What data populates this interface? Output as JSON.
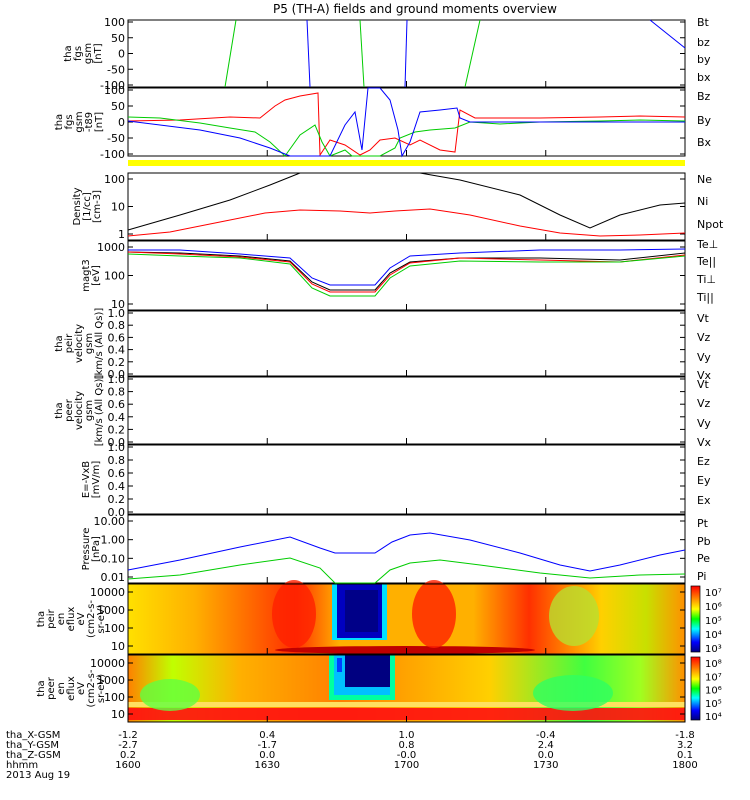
{
  "title": "P5 (TH-A) fields and ground moments overview",
  "chart_data": [
    {
      "id": "fgs",
      "type": "line",
      "ylabel": [
        "tha",
        "fgs",
        "gsm",
        "[nT]"
      ],
      "ylim": [
        -100,
        100
      ],
      "yticks": [
        "100",
        "50",
        "0",
        "-50",
        "-100"
      ],
      "legend": [
        {
          "label": "Bt",
          "color": "#000000"
        },
        {
          "label": "bz",
          "color": "#ff0000"
        },
        {
          "label": "by",
          "color": "#00cc00"
        },
        {
          "label": "bx",
          "color": "#0000ff"
        }
      ]
    },
    {
      "id": "fgs_dsl",
      "type": "line",
      "ylabel": [
        "tha",
        "fgs",
        "gsm",
        "-t89",
        "[nT]"
      ],
      "ylim": [
        -130,
        130
      ],
      "yticks": [
        "100",
        "50",
        "0",
        "-50",
        "-100"
      ],
      "legend": [
        {
          "label": "Bz",
          "color": "#ff0000"
        },
        {
          "label": "By",
          "color": "#00cc00"
        },
        {
          "label": "Bx",
          "color": "#0000ff"
        }
      ]
    },
    {
      "id": "density",
      "type": "line",
      "log": true,
      "ylabel": [
        "Density",
        "[1/cc]",
        "[cm-3]"
      ],
      "yticks": [
        "100",
        "10",
        "1"
      ],
      "legend": [
        {
          "label": "Ne",
          "color": "#ff0000"
        },
        {
          "label": "Ni",
          "color": "#000000"
        },
        {
          "label": "Npot",
          "color": "#0000ff"
        }
      ]
    },
    {
      "id": "temperature",
      "type": "line",
      "log": true,
      "ylabel": [
        "magt3",
        "[eV]"
      ],
      "yticks": [
        "1000",
        "100",
        "10"
      ],
      "legend": [
        {
          "label": "Te⊥",
          "color": "#ff0000"
        },
        {
          "label": "Te||",
          "color": "#000000"
        },
        {
          "label": "Ti⊥",
          "color": "#0000ff"
        },
        {
          "label": "Ti||",
          "color": "#00cc00"
        }
      ]
    },
    {
      "id": "peir_velocity",
      "type": "line",
      "ylabel": [
        "tha",
        "peir",
        "velocity",
        "gsm",
        "[km/s (All Qs)]"
      ],
      "ylim": [
        0,
        1
      ],
      "yticks": [
        "1.0",
        "0.8",
        "0.6",
        "0.4",
        "0.2",
        "0.0"
      ],
      "legend": [
        {
          "label": "Vt",
          "color": "#000000"
        },
        {
          "label": "Vz",
          "color": "#ff0000"
        },
        {
          "label": "Vy",
          "color": "#00cc00"
        },
        {
          "label": "Vx",
          "color": "#0000ff"
        }
      ]
    },
    {
      "id": "peer_velocity",
      "type": "line",
      "ylabel": [
        "tha",
        "peer",
        "velocity",
        "gsm",
        "[km/s (All Qs)]"
      ],
      "ylim": [
        0,
        1
      ],
      "yticks": [
        "1.0",
        "0.8",
        "0.6",
        "0.4",
        "0.2",
        "0.0"
      ],
      "legend": [
        {
          "label": "Vt",
          "color": "#000000"
        },
        {
          "label": "Vz",
          "color": "#ff0000"
        },
        {
          "label": "Vy",
          "color": "#00cc00"
        },
        {
          "label": "Vx",
          "color": "#0000ff"
        }
      ]
    },
    {
      "id": "efield",
      "type": "line",
      "ylabel": [
        "E=-VxB",
        "[mV/m]"
      ],
      "ylim": [
        0,
        1
      ],
      "yticks": [
        "1.0",
        "0.8",
        "0.6",
        "0.4",
        "0.2",
        "0.0"
      ],
      "legend": [
        {
          "label": "Ez",
          "color": "#ff0000"
        },
        {
          "label": "Ey",
          "color": "#00cc00"
        },
        {
          "label": "Ex",
          "color": "#0000ff"
        }
      ]
    },
    {
      "id": "pressure",
      "type": "line",
      "log": true,
      "ylabel": [
        "Pressure",
        "[nPa]"
      ],
      "yticks": [
        "10.00",
        "1.00",
        "0.10",
        "0.01"
      ],
      "legend": [
        {
          "label": "Pt",
          "color": "#000000"
        },
        {
          "label": "Pb",
          "color": "#ff0000"
        },
        {
          "label": "Pe",
          "color": "#00cc00"
        },
        {
          "label": "Pi",
          "color": "#0000ff"
        }
      ]
    },
    {
      "id": "peir_spec",
      "type": "heatmap",
      "ylabel": [
        "tha",
        "peir",
        "en",
        "eflux",
        "eV",
        "(cm2-s-",
        "sr-eV)"
      ],
      "yticks": [
        "10000",
        "1000",
        "100",
        "10"
      ],
      "colorbar_ticks": [
        "10⁷",
        "10⁶",
        "10⁵",
        "10⁴",
        "10³"
      ]
    },
    {
      "id": "peer_spec",
      "type": "heatmap",
      "ylabel": [
        "tha",
        "peer",
        "en",
        "eflux",
        "eV",
        "(cm2-s-",
        "sr-eV)"
      ],
      "yticks": [
        "10000",
        "1000",
        "100",
        "10"
      ],
      "colorbar_ticks": [
        "10⁸",
        "10⁷",
        "10⁶",
        "10⁵",
        "10⁴"
      ]
    }
  ],
  "xaxis": {
    "rows": [
      {
        "label": "tha_X-GSM",
        "values": [
          "-1.2",
          "0.4",
          "1.0",
          "-0.4",
          "-1.8"
        ]
      },
      {
        "label": "tha_Y-GSM",
        "values": [
          "-2.7",
          "-1.7",
          "0.8",
          "2.4",
          "3.2"
        ]
      },
      {
        "label": "tha_Z-GSM",
        "values": [
          "0.2",
          "0.0",
          "-0.0",
          "0.0",
          "0.1"
        ]
      },
      {
        "label": "hhmm",
        "values": [
          "1600",
          "1630",
          "1700",
          "1730",
          "1800"
        ]
      }
    ],
    "date": "2013 Aug 19"
  },
  "colors": {
    "red": "#ff0000",
    "green": "#00cc00",
    "blue": "#0000ff",
    "black": "#000000",
    "yellow": "#ffff00"
  }
}
